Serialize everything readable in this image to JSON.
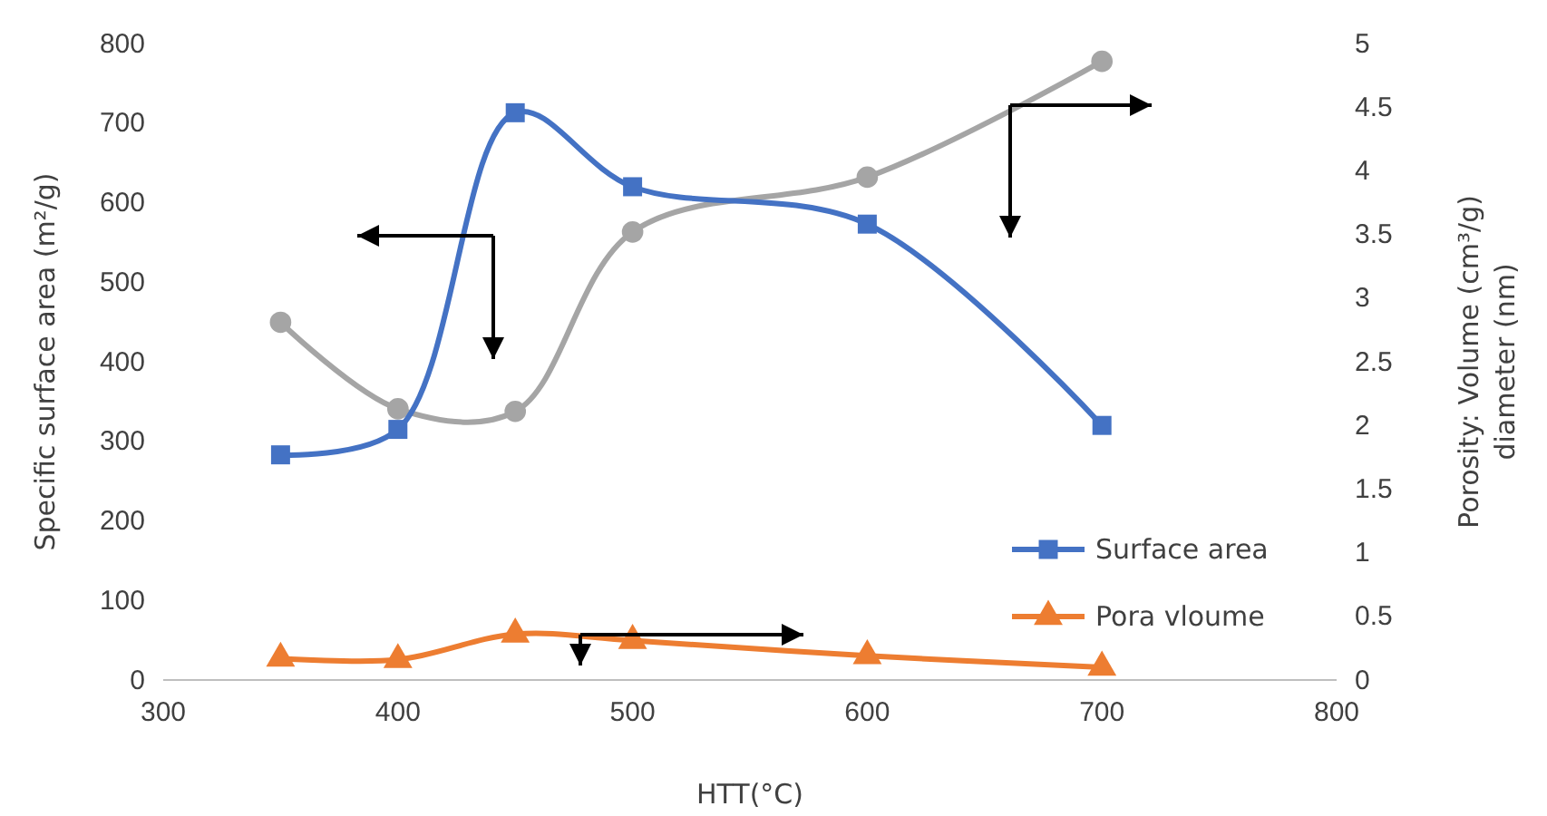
{
  "chart_data": {
    "type": "line",
    "xlabel": "HTT(°C)",
    "ylabel": "Specific surface area (m²/g)",
    "y2label": "Porosity: Volume (cm³/g)\ndiameter (nm)",
    "x": [
      350,
      400,
      450,
      500,
      600,
      700
    ],
    "xlim": [
      300,
      800
    ],
    "xticks": [
      300,
      400,
      500,
      600,
      700,
      800
    ],
    "ylim": [
      0,
      800
    ],
    "yticks": [
      0,
      100,
      200,
      300,
      400,
      500,
      600,
      700,
      800
    ],
    "y2lim": [
      0,
      5
    ],
    "y2ticks": [
      0,
      0.5,
      1,
      1.5,
      2,
      2.5,
      3,
      3.5,
      4,
      4.5,
      5
    ],
    "grid": false,
    "legend": "bottom right",
    "series": [
      {
        "name": "Surface area",
        "color": "#4472c4",
        "marker": "square",
        "values": [
          283,
          315,
          713,
          620,
          573,
          320
        ]
      },
      {
        "name": "Pora vloume",
        "color": "#ed7d31",
        "marker": "triangle",
        "axis": "y2",
        "values": [
          0.17,
          0.16,
          0.36,
          0.31,
          0.19,
          0.1
        ]
      },
      {
        "color": "#a5a5a5",
        "marker": "circle",
        "axis": "y2",
        "values": [
          2.81,
          2.13,
          2.11,
          3.52,
          3.95,
          4.86
        ]
      }
    ]
  }
}
